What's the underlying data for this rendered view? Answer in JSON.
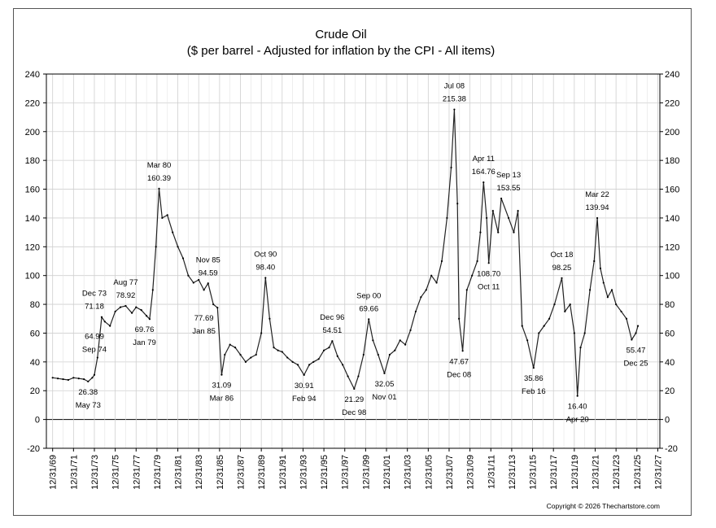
{
  "chart_data": {
    "type": "line",
    "title": "Crude Oil",
    "subtitle": "($ per barrel - Adjusted for inflation by the CPI - All items)",
    "xlabel": "",
    "ylabel": "",
    "ylim": [
      -20,
      240
    ],
    "yticks": [
      -20,
      0,
      20,
      40,
      60,
      80,
      100,
      120,
      140,
      160,
      180,
      200,
      220,
      240
    ],
    "xlim": [
      1969.4,
      2028.2
    ],
    "xticks": [
      "12/31/69",
      "12/31/71",
      "12/31/73",
      "12/31/75",
      "12/31/77",
      "12/31/79",
      "12/31/81",
      "12/31/83",
      "12/31/85",
      "12/31/87",
      "12/31/89",
      "12/31/91",
      "12/31/93",
      "12/31/95",
      "12/31/97",
      "12/31/99",
      "12/31/01",
      "12/31/03",
      "12/31/05",
      "12/31/07",
      "12/31/09",
      "12/31/11",
      "12/31/13",
      "12/31/15",
      "12/31/17",
      "12/31/19",
      "12/31/21",
      "12/31/23",
      "12/31/25",
      "12/31/27"
    ],
    "grid": true,
    "legend": "none",
    "series": [
      {
        "name": "Crude Oil (inflation adjusted)",
        "x": [
          1970.0,
          1970.5,
          1971.0,
          1971.5,
          1972.0,
          1972.5,
          1973.0,
          1973.4,
          1973.8,
          1974.0,
          1974.3,
          1974.7,
          1975.0,
          1975.5,
          1976.0,
          1976.5,
          1977.0,
          1977.6,
          1978.0,
          1978.5,
          1979.0,
          1979.3,
          1979.6,
          1979.9,
          1980.2,
          1980.5,
          1981.0,
          1981.5,
          1982.0,
          1982.5,
          1983.0,
          1983.5,
          1984.0,
          1984.5,
          1984.9,
          1985.4,
          1985.8,
          1986.2,
          1986.5,
          1987.0,
          1987.5,
          1988.0,
          1988.5,
          1989.0,
          1989.5,
          1990.0,
          1990.4,
          1990.8,
          1991.2,
          1991.6,
          1992.0,
          1992.5,
          1993.0,
          1993.5,
          1994.1,
          1994.6,
          1995.0,
          1995.5,
          1996.0,
          1996.5,
          1996.8,
          1997.3,
          1997.8,
          1998.3,
          1998.9,
          1999.3,
          1999.8,
          2000.3,
          2000.7,
          2001.2,
          2001.8,
          2002.3,
          2002.8,
          2003.3,
          2003.8,
          2004.3,
          2004.8,
          2005.3,
          2005.8,
          2006.3,
          2006.8,
          2007.3,
          2007.8,
          2008.2,
          2008.5,
          2008.8,
          2008.95,
          2009.3,
          2009.7,
          2010.2,
          2010.7,
          2011.0,
          2011.3,
          2011.6,
          2011.8,
          2012.2,
          2012.7,
          2013.0,
          2013.7,
          2014.2,
          2014.6,
          2015.0,
          2015.5,
          2016.1,
          2016.6,
          2017.1,
          2017.6,
          2018.1,
          2018.8,
          2019.1,
          2019.6,
          2020.0,
          2020.3,
          2020.6,
          2021.0,
          2021.5,
          2021.9,
          2022.2,
          2022.5,
          2022.8,
          2023.2,
          2023.6,
          2024.0,
          2024.5,
          2025.0,
          2025.5,
          2025.9,
          2026.1
        ],
        "values": [
          29,
          28.5,
          28,
          27.5,
          29,
          28.5,
          28,
          26.38,
          29,
          31,
          43,
          71.18,
          68,
          64.99,
          75,
          78,
          78.92,
          74,
          78,
          76,
          72,
          69.76,
          90,
          120,
          160.39,
          140,
          142,
          130,
          120,
          112,
          100,
          95,
          97,
          90,
          94.59,
          80,
          77.69,
          31.09,
          45,
          52,
          50,
          45,
          40,
          43,
          45,
          60,
          98.4,
          70,
          50,
          48,
          47,
          43,
          40,
          38,
          30.91,
          38,
          40,
          42,
          48,
          50,
          54.51,
          44,
          38,
          30,
          21.29,
          30,
          45,
          69.66,
          55,
          45,
          32.05,
          45,
          48,
          55,
          52,
          62,
          75,
          85,
          90,
          100,
          95,
          110,
          140,
          175,
          215.38,
          150,
          70,
          47.67,
          90,
          100,
          110,
          130,
          164.76,
          140,
          108.7,
          145,
          130,
          153.55,
          140,
          130,
          145,
          65,
          55,
          35.86,
          60,
          65,
          70,
          80,
          98.25,
          75,
          80,
          60,
          16.4,
          50,
          60,
          90,
          110,
          139.94,
          105,
          95,
          85,
          90,
          80,
          75,
          70,
          55.47,
          60,
          65
        ]
      }
    ],
    "annotations": [
      {
        "x": 1973.4,
        "y": 26.38,
        "date": "May 73",
        "value": "26.38",
        "position": "below"
      },
      {
        "x": 1974.0,
        "y": 71.18,
        "date": "Dec 73",
        "value": "71.18",
        "position": "above"
      },
      {
        "x": 1974.0,
        "y": 64.99,
        "date": "Sep 74",
        "value": "64.99",
        "position": "below"
      },
      {
        "x": 1977.0,
        "y": 78.92,
        "date": "Aug 77",
        "value": "78.92",
        "position": "above"
      },
      {
        "x": 1978.8,
        "y": 69.76,
        "date": "Jan 79",
        "value": "69.76",
        "position": "below"
      },
      {
        "x": 1980.2,
        "y": 160.39,
        "date": "Mar 80",
        "value": "160.39",
        "position": "above"
      },
      {
        "x": 1984.9,
        "y": 94.59,
        "date": "Nov 85",
        "value": "94.59",
        "position": "above"
      },
      {
        "x": 1984.5,
        "y": 77.69,
        "date": "Jan 85",
        "value": "77.69",
        "position": "below"
      },
      {
        "x": 1986.2,
        "y": 31.09,
        "date": "Mar 86",
        "value": "31.09",
        "position": "below"
      },
      {
        "x": 1990.4,
        "y": 98.4,
        "date": "Oct 90",
        "value": "98.40",
        "position": "above"
      },
      {
        "x": 1994.1,
        "y": 30.91,
        "date": "Feb 94",
        "value": "30.91",
        "position": "below"
      },
      {
        "x": 1996.8,
        "y": 54.51,
        "date": "Dec 96",
        "value": "54.51",
        "position": "above"
      },
      {
        "x": 1998.9,
        "y": 21.29,
        "date": "Dec 98",
        "value": "21.29",
        "position": "below"
      },
      {
        "x": 2000.3,
        "y": 69.66,
        "date": "Sep 00",
        "value": "69.66",
        "position": "above"
      },
      {
        "x": 2001.8,
        "y": 32.05,
        "date": "Nov 01",
        "value": "32.05",
        "position": "below"
      },
      {
        "x": 2008.5,
        "y": 215.38,
        "date": "Jul 08",
        "value": "215.38",
        "position": "above"
      },
      {
        "x": 2008.95,
        "y": 47.67,
        "date": "Dec 08",
        "value": "47.67",
        "position": "below"
      },
      {
        "x": 2011.3,
        "y": 164.76,
        "date": "Apr 11",
        "value": "164.76",
        "position": "above"
      },
      {
        "x": 2011.8,
        "y": 108.7,
        "date": "Oct 11",
        "value": "108.70",
        "position": "below"
      },
      {
        "x": 2013.7,
        "y": 153.55,
        "date": "Sep 13",
        "value": "153.55",
        "position": "above"
      },
      {
        "x": 2016.1,
        "y": 35.86,
        "date": "Feb 16",
        "value": "35.86",
        "position": "below"
      },
      {
        "x": 2018.8,
        "y": 98.25,
        "date": "Oct 18",
        "value": "98.25",
        "position": "above"
      },
      {
        "x": 2020.3,
        "y": 16.4,
        "date": "Apr 20",
        "value": "16.40",
        "position": "below"
      },
      {
        "x": 2022.2,
        "y": 139.94,
        "date": "Mar 22",
        "value": "139.94",
        "position": "above"
      },
      {
        "x": 2025.9,
        "y": 55.47,
        "date": "Dec 25",
        "value": "55.47",
        "position": "below"
      }
    ],
    "footer": "Copyright © 2026 Thechartstore.com"
  }
}
